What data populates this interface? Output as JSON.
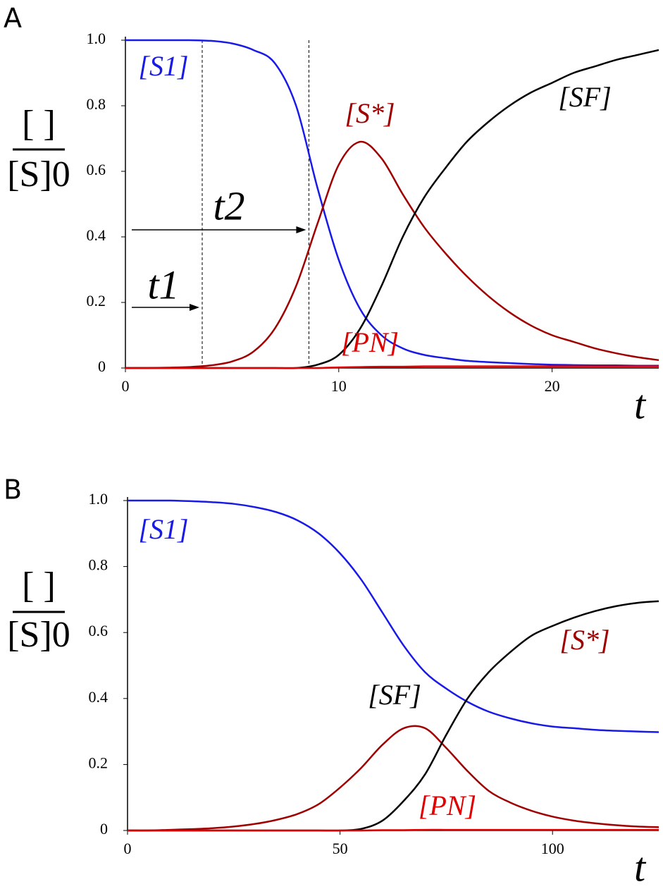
{
  "chart_data": [
    {
      "type": "line",
      "panel_label": "A",
      "ylabel_numerator": "[ ]",
      "ylabel_denominator": "[S]0",
      "xlabel": "t",
      "x": [
        0,
        1,
        2,
        3,
        4,
        5,
        6,
        7,
        8,
        9,
        10,
        11,
        12,
        13,
        14,
        15,
        16,
        17,
        18,
        19,
        20,
        21,
        22,
        23,
        24,
        25
      ],
      "series": [
        {
          "name": "[S1]",
          "color": "#1a1ae6",
          "values": [
            1,
            1,
            1,
            1,
            0.998,
            0.99,
            0.97,
            0.93,
            0.8,
            0.55,
            0.33,
            0.18,
            0.1,
            0.06,
            0.04,
            0.03,
            0.022,
            0.018,
            0.015,
            0.012,
            0.01,
            0.009,
            0.008,
            0.008,
            0.007,
            0.007
          ]
        },
        {
          "name": "[S*]",
          "color": "#a00000",
          "values": [
            0,
            0,
            0.001,
            0.003,
            0.008,
            0.02,
            0.05,
            0.12,
            0.25,
            0.44,
            0.62,
            0.69,
            0.64,
            0.53,
            0.43,
            0.35,
            0.28,
            0.22,
            0.17,
            0.13,
            0.1,
            0.08,
            0.06,
            0.045,
            0.033,
            0.024
          ]
        },
        {
          "name": "[SF]",
          "color": "#000000",
          "values": [
            0,
            0,
            0,
            0,
            0,
            0,
            0,
            0,
            0,
            0.01,
            0.04,
            0.12,
            0.25,
            0.4,
            0.52,
            0.61,
            0.69,
            0.75,
            0.8,
            0.84,
            0.87,
            0.9,
            0.92,
            0.94,
            0.955,
            0.97
          ]
        },
        {
          "name": "[PN]",
          "color": "#e00000",
          "values": [
            0,
            0,
            0,
            0,
            0,
            0,
            0,
            0,
            0,
            0,
            0.002,
            0.003,
            0.004,
            0.004,
            0.005,
            0.005,
            0.005,
            0.005,
            0.005,
            0.005,
            0.005,
            0.005,
            0.005,
            0.005,
            0.005,
            0.005
          ]
        }
      ],
      "markers": [
        {
          "x": 3.6,
          "label": "t1"
        },
        {
          "x": 8.6,
          "label": "t2"
        }
      ],
      "xlim": [
        0,
        25
      ],
      "ylim": [
        0,
        1
      ],
      "xticks": [
        0,
        10,
        20
      ],
      "yticks": [
        0,
        0.2,
        0.4,
        0.6,
        0.8,
        {
          "value": 1,
          "label": "1.0"
        }
      ]
    },
    {
      "type": "line",
      "panel_label": "B",
      "ylabel_numerator": "[ ]",
      "ylabel_denominator": "[S]0",
      "xlabel": "t",
      "x": [
        0,
        5,
        10,
        15,
        20,
        25,
        30,
        35,
        40,
        45,
        50,
        55,
        60,
        65,
        70,
        75,
        80,
        85,
        90,
        95,
        100,
        105,
        110,
        115,
        120,
        125
      ],
      "series": [
        {
          "name": "[S1]",
          "color": "#1a1ae6",
          "values": [
            1,
            1,
            1,
            0.998,
            0.995,
            0.99,
            0.98,
            0.965,
            0.94,
            0.9,
            0.84,
            0.76,
            0.66,
            0.56,
            0.48,
            0.43,
            0.39,
            0.36,
            0.34,
            0.325,
            0.315,
            0.31,
            0.305,
            0.302,
            0.3,
            0.298
          ]
        },
        {
          "name": "[S*]",
          "color": "#a00000",
          "values": [
            0,
            0,
            0.002,
            0.004,
            0.007,
            0.012,
            0.02,
            0.032,
            0.05,
            0.08,
            0.13,
            0.19,
            0.26,
            0.31,
            0.31,
            0.25,
            0.18,
            0.12,
            0.085,
            0.06,
            0.042,
            0.03,
            0.022,
            0.016,
            0.012,
            0.01
          ]
        },
        {
          "name": "[SF]",
          "color": "#000000",
          "values": [
            0,
            0,
            0,
            0,
            0,
            0,
            0,
            0,
            0,
            0,
            0,
            0.005,
            0.03,
            0.09,
            0.17,
            0.29,
            0.4,
            0.48,
            0.54,
            0.59,
            0.62,
            0.645,
            0.665,
            0.68,
            0.69,
            0.695
          ]
        },
        {
          "name": "[PN]",
          "color": "#e00000",
          "values": [
            0,
            0,
            0,
            0,
            0,
            0,
            0,
            0,
            0,
            0,
            0,
            0,
            0.001,
            0.001,
            0.002,
            0.002,
            0.002,
            0.002,
            0.002,
            0.002,
            0.002,
            0.002,
            0.002,
            0.002,
            0.002,
            0.002
          ]
        }
      ],
      "xlim": [
        0,
        125
      ],
      "ylim": [
        0,
        1
      ],
      "xticks": [
        0,
        50,
        100
      ],
      "yticks": [
        0,
        0.2,
        0.4,
        0.6,
        0.8,
        {
          "value": 1,
          "label": "1.0"
        }
      ]
    }
  ]
}
